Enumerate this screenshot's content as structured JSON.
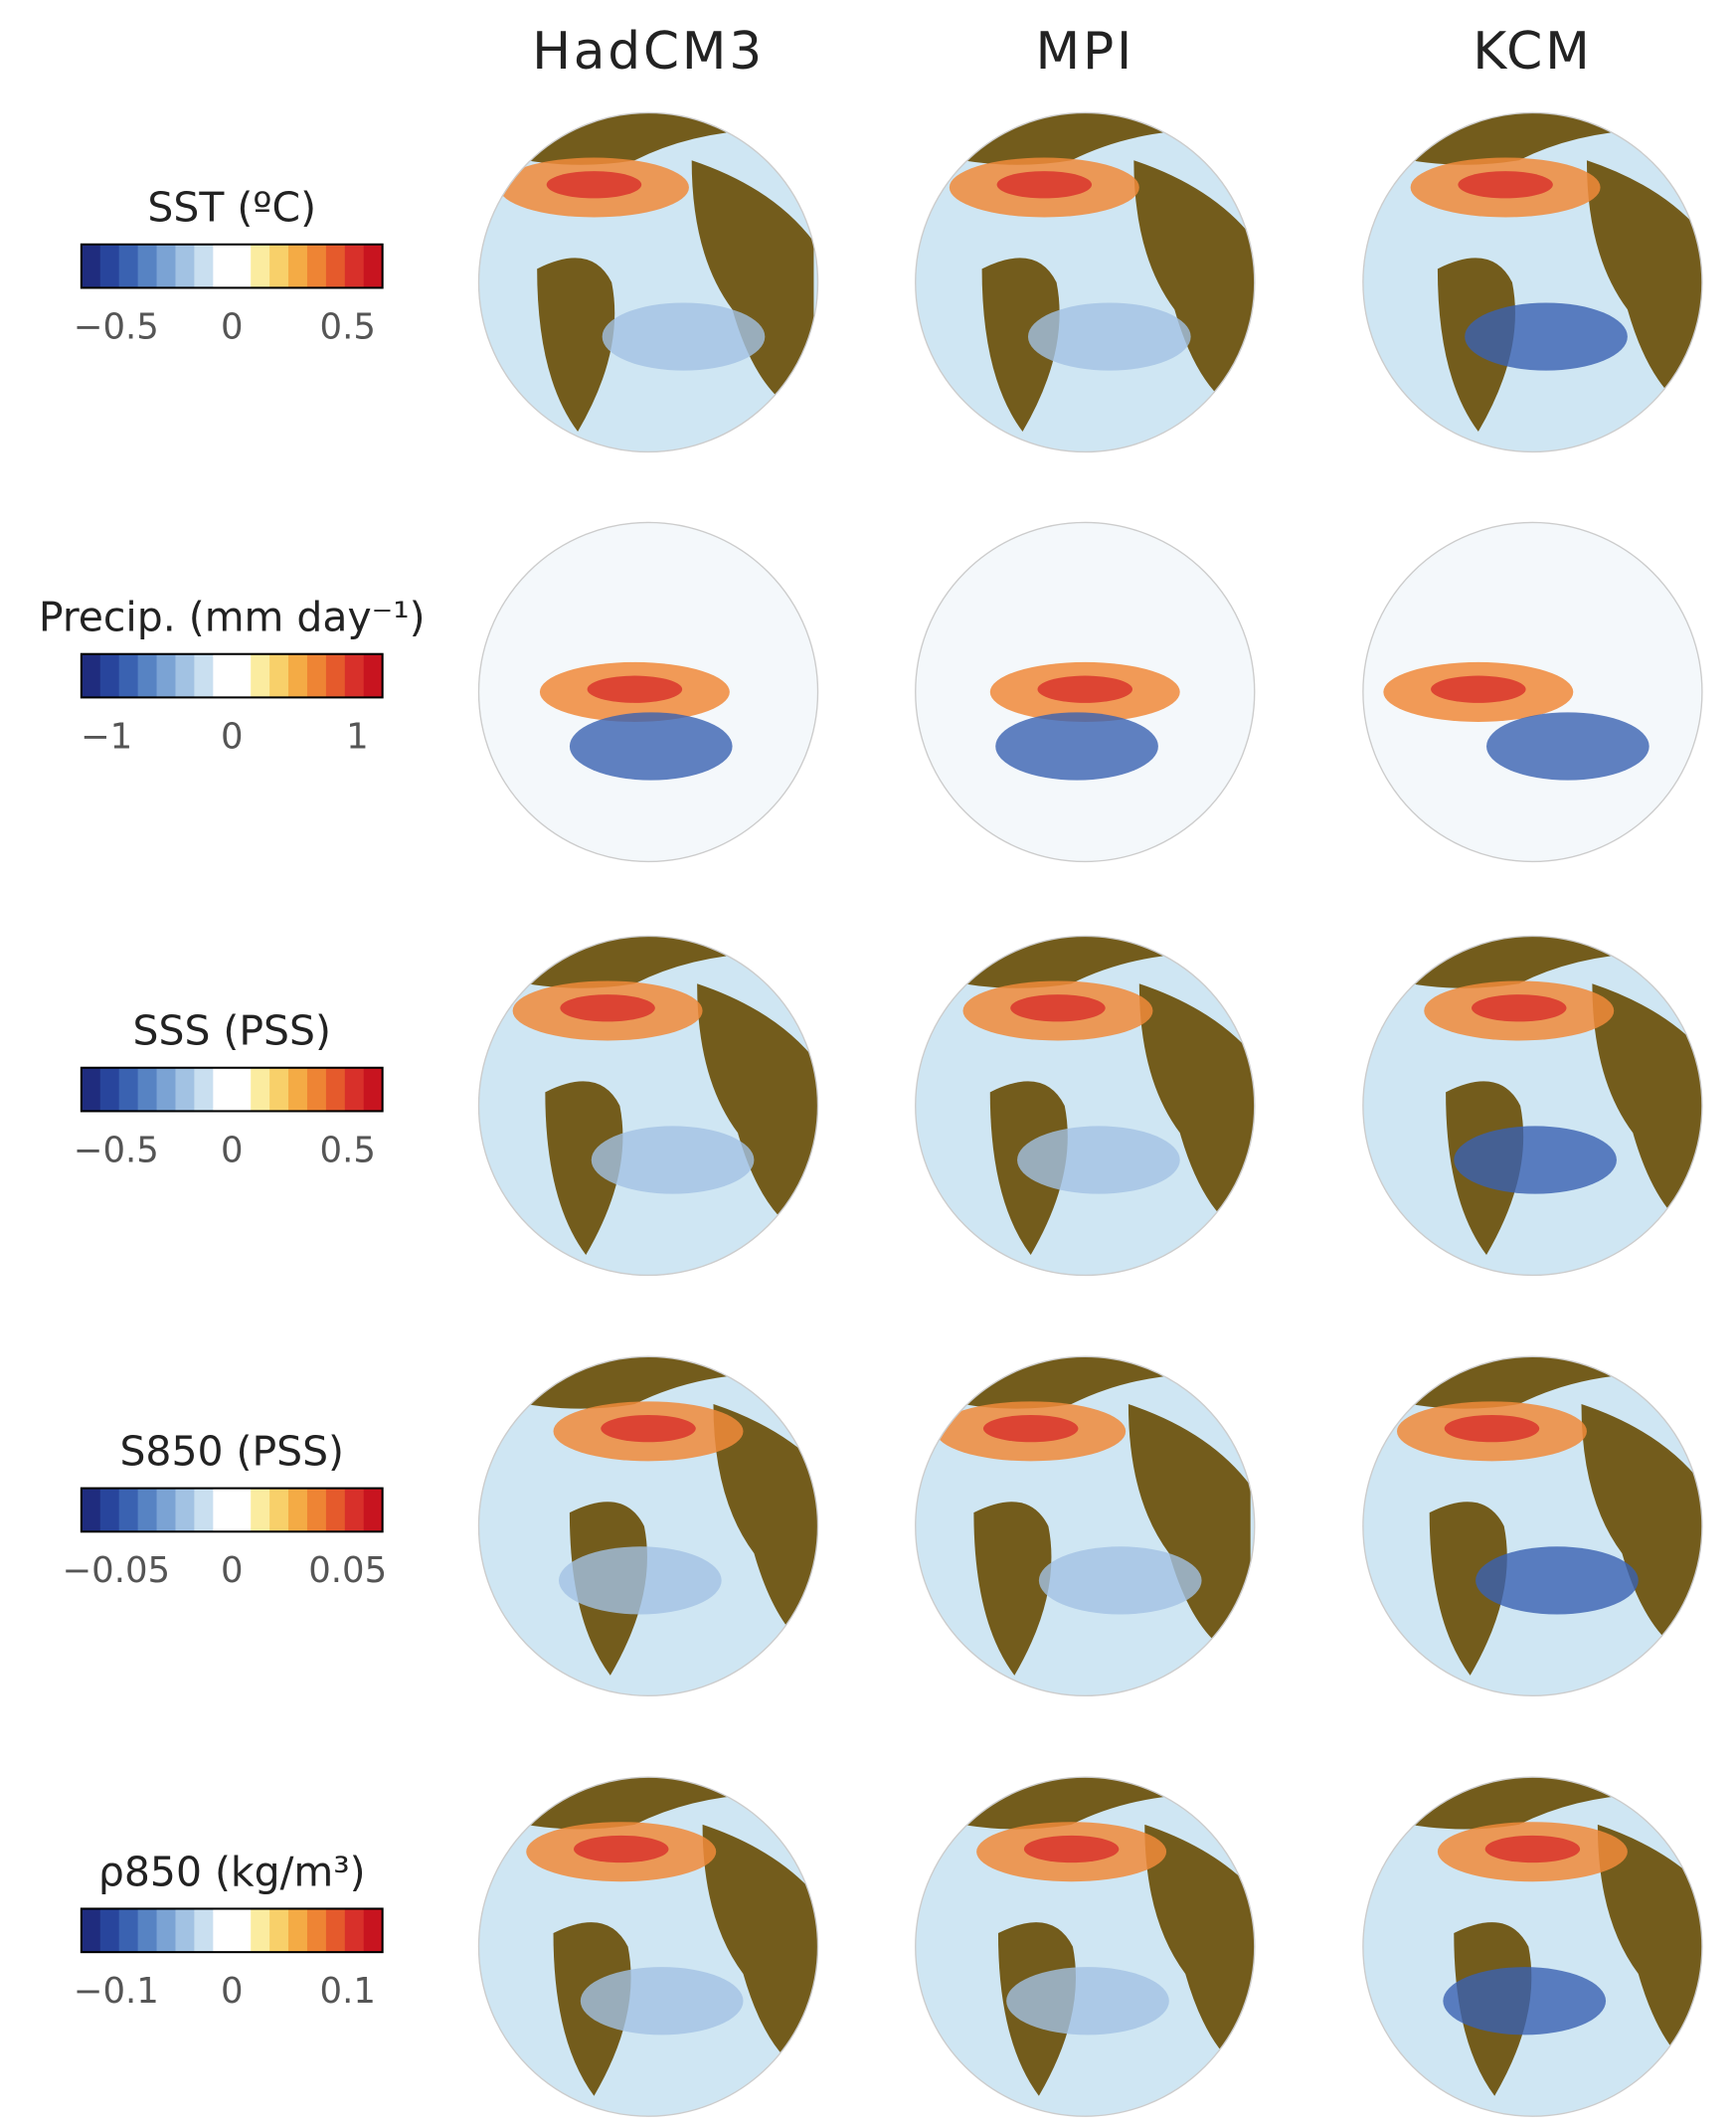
{
  "columns": [
    "HadCM3",
    "MPI",
    "KCM"
  ],
  "colormap": [
    "#1f2c7e",
    "#28459c",
    "#3a62b1",
    "#5783c3",
    "#7ba3d4",
    "#a2c2e3",
    "#c9dff0",
    "#ffffff",
    "#ffffff",
    "#fbeca0",
    "#f8d06a",
    "#f4ab45",
    "#ee8434",
    "#e55a2c",
    "#d8302a",
    "#c8141f"
  ],
  "rows": [
    {
      "label": "SST  (ºC)",
      "lim": [
        -0.65,
        0.65
      ],
      "ticks": [
        {
          "value": -0.5,
          "label": "−0.5"
        },
        0,
        0.5
      ]
    },
    {
      "label": "Precip. (mm day⁻¹)",
      "lim": [
        -1.2,
        1.2
      ],
      "ticks": [
        {
          "value": -1,
          "label": "−1"
        },
        0,
        1
      ]
    },
    {
      "label": "SSS (PSS)",
      "lim": [
        -0.65,
        0.65
      ],
      "ticks": [
        {
          "value": -0.5,
          "label": "−0.5"
        },
        0,
        0.5
      ]
    },
    {
      "label": "S850 (PSS)",
      "lim": [
        -0.065,
        0.065
      ],
      "ticks": [
        {
          "value": -0.05,
          "label": "−0.05"
        },
        0,
        0.05
      ]
    },
    {
      "label": "ρ850  (kg/m³)",
      "lim": [
        -0.13,
        0.13
      ],
      "ticks": [
        {
          "value": -0.1,
          "label": "−0.1"
        },
        0,
        0.1
      ]
    }
  ]
}
